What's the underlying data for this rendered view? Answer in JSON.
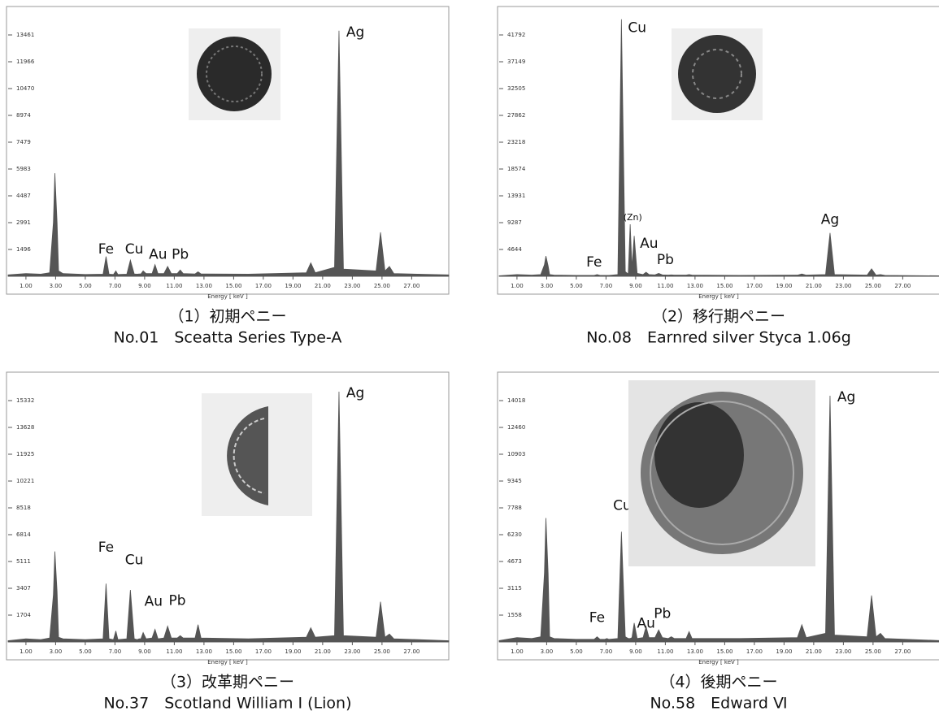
{
  "chart_data": [
    {
      "type": "area",
      "title": "（1）初期ペニー",
      "subtitle": "No.01　Sceatta Series Type-A",
      "xlabel": "Energy [ keV ]",
      "color": "#555555",
      "x": [
        -0.2,
        1.0,
        2.0,
        2.6,
        2.85,
        2.95,
        3.1,
        3.2,
        3.5,
        5.0,
        6.2,
        6.4,
        6.6,
        6.9,
        7.06,
        7.2,
        7.8,
        8.04,
        8.3,
        8.5,
        8.63,
        8.75,
        8.9,
        9.1,
        9.5,
        9.7,
        9.9,
        10.3,
        10.55,
        10.8,
        11.2,
        11.4,
        11.6,
        12.4,
        12.6,
        12.8,
        16.0,
        19.9,
        20.2,
        20.5,
        21.8,
        22.1,
        22.4,
        24.6,
        24.9,
        25.2,
        25.5,
        25.8,
        29.5
      ],
      "values": [
        80,
        150,
        120,
        200,
        3000,
        5750,
        3000,
        300,
        150,
        100,
        120,
        1100,
        120,
        100,
        300,
        100,
        120,
        900,
        130,
        120,
        130,
        130,
        300,
        150,
        150,
        650,
        150,
        150,
        550,
        150,
        150,
        350,
        150,
        130,
        250,
        130,
        120,
        200,
        750,
        200,
        500,
        13700,
        400,
        300,
        2450,
        300,
        550,
        150,
        80
      ],
      "xlim": [
        -0.2,
        29.5
      ],
      "ylim": [
        0,
        14957
      ],
      "xticks": [
        {
          "value": 1,
          "label": "1.00"
        },
        {
          "value": 3,
          "label": "3.00"
        },
        {
          "value": 5,
          "label": "5.00"
        },
        {
          "value": 7,
          "label": "7.00"
        },
        {
          "value": 9,
          "label": "9.00"
        },
        {
          "value": 11,
          "label": "11.00"
        },
        {
          "value": 13,
          "label": "13.00"
        },
        {
          "value": 15,
          "label": "15.00"
        },
        {
          "value": 17,
          "label": "17.00"
        },
        {
          "value": 19,
          "label": "19.00"
        },
        {
          "value": 21,
          "label": "21.00"
        },
        {
          "value": 23,
          "label": "23.00"
        },
        {
          "value": 25,
          "label": "25.00"
        },
        {
          "value": 27,
          "label": "27.00"
        }
      ],
      "yticks": [
        1496,
        2991,
        4487,
        5983,
        7479,
        8974,
        10470,
        11966,
        13461
      ],
      "annotations": [
        {
          "text": "Fe",
          "x": 6.4,
          "y": 1500
        },
        {
          "text": "Cu",
          "x": 8.3,
          "y": 1500
        },
        {
          "text": "Au",
          "x": 9.9,
          "y": 1200
        },
        {
          "text": "Pb",
          "x": 11.4,
          "y": 1200
        },
        {
          "text": "Ag",
          "x": 23.2,
          "y": 13600
        }
      ]
    },
    {
      "type": "area",
      "title": "（2）移行期ペニー",
      "subtitle": "No.08　Earnred silver Styca 1.06g",
      "xlabel": "Energy [ keV ]",
      "color": "#555555",
      "x": [
        -0.2,
        1.0,
        2.0,
        2.6,
        2.85,
        2.95,
        3.1,
        3.2,
        3.5,
        5.0,
        6.2,
        6.4,
        6.6,
        6.9,
        7.06,
        7.2,
        7.8,
        8.04,
        8.3,
        8.5,
        8.63,
        8.75,
        8.9,
        9.1,
        9.5,
        9.7,
        9.9,
        10.3,
        10.55,
        10.8,
        11.2,
        11.4,
        11.6,
        12.4,
        12.6,
        12.8,
        16.0,
        19.9,
        20.2,
        20.5,
        21.8,
        22.1,
        22.4,
        24.6,
        24.9,
        25.2,
        25.5,
        25.8,
        29.5
      ],
      "values": [
        80,
        300,
        200,
        300,
        2000,
        3500,
        1800,
        300,
        200,
        150,
        150,
        300,
        150,
        150,
        150,
        150,
        300,
        44500,
        800,
        400,
        9000,
        1500,
        7000,
        500,
        300,
        700,
        300,
        250,
        500,
        250,
        200,
        250,
        200,
        200,
        300,
        200,
        150,
        200,
        400,
        200,
        300,
        7500,
        300,
        200,
        1300,
        200,
        300,
        150,
        80
      ],
      "xlim": [
        -0.2,
        29.5
      ],
      "ylim": [
        0,
        46436
      ],
      "xticks": [
        {
          "value": 1,
          "label": "1.00"
        },
        {
          "value": 3,
          "label": "3.00"
        },
        {
          "value": 5,
          "label": "5.00"
        },
        {
          "value": 7,
          "label": "7.00"
        },
        {
          "value": 9,
          "label": "9.00"
        },
        {
          "value": 11,
          "label": "11.00"
        },
        {
          "value": 13,
          "label": "13.00"
        },
        {
          "value": 15,
          "label": "15.00"
        },
        {
          "value": 17,
          "label": "17.00"
        },
        {
          "value": 19,
          "label": "19.00"
        },
        {
          "value": 21,
          "label": "21.00"
        },
        {
          "value": 23,
          "label": "23.00"
        },
        {
          "value": 25,
          "label": "25.00"
        },
        {
          "value": 27,
          "label": "27.00"
        }
      ],
      "yticks": [
        4644,
        9287,
        13931,
        18574,
        23218,
        27862,
        32505,
        37149,
        41792
      ],
      "annotations": [
        {
          "text": "Cu",
          "x": 9.1,
          "y": 43000
        },
        {
          "text": "(Zn)",
          "x": 8.8,
          "y": 10100
        },
        {
          "text": "Au",
          "x": 9.9,
          "y": 5600
        },
        {
          "text": "Pb",
          "x": 11.0,
          "y": 2800
        },
        {
          "text": "Fe",
          "x": 6.2,
          "y": 2400
        },
        {
          "text": "Ag",
          "x": 22.1,
          "y": 9800
        }
      ]
    },
    {
      "type": "area",
      "title": "（3）改革期ペニー",
      "subtitle": "No.37　Scotland William Ⅰ (Lion)",
      "xlabel": "Energy [ keV ]",
      "color": "#555555",
      "x": [
        -0.2,
        1.0,
        2.0,
        2.6,
        2.85,
        2.95,
        3.1,
        3.2,
        3.5,
        5.0,
        6.2,
        6.4,
        6.6,
        6.9,
        7.06,
        7.2,
        7.8,
        8.04,
        8.3,
        8.5,
        8.63,
        8.75,
        8.9,
        9.1,
        9.5,
        9.7,
        9.9,
        10.3,
        10.55,
        10.8,
        11.2,
        11.4,
        11.6,
        12.4,
        12.6,
        12.8,
        16.0,
        19.9,
        20.2,
        20.5,
        21.8,
        22.1,
        22.4,
        24.6,
        24.9,
        25.2,
        25.5,
        25.8,
        29.5
      ],
      "values": [
        80,
        200,
        150,
        250,
        3000,
        5750,
        3200,
        300,
        200,
        150,
        200,
        3700,
        200,
        150,
        700,
        150,
        200,
        3300,
        200,
        150,
        200,
        200,
        600,
        200,
        250,
        800,
        200,
        250,
        1000,
        250,
        250,
        400,
        250,
        250,
        1100,
        250,
        200,
        300,
        900,
        300,
        400,
        15900,
        400,
        300,
        2550,
        300,
        500,
        200,
        80
      ],
      "xlim": [
        -0.2,
        29.5
      ],
      "ylim": [
        0,
        17036
      ],
      "xticks": [
        {
          "value": 1,
          "label": "1.00"
        },
        {
          "value": 3,
          "label": "3.00"
        },
        {
          "value": 5,
          "label": "5.00"
        },
        {
          "value": 7,
          "label": "7.00"
        },
        {
          "value": 9,
          "label": "9.00"
        },
        {
          "value": 11,
          "label": "11.00"
        },
        {
          "value": 13,
          "label": "13.00"
        },
        {
          "value": 15,
          "label": "15.00"
        },
        {
          "value": 17,
          "label": "17.00"
        },
        {
          "value": 19,
          "label": "19.00"
        },
        {
          "value": 21,
          "label": "21.00"
        },
        {
          "value": 23,
          "label": "23.00"
        },
        {
          "value": 25,
          "label": "25.00"
        },
        {
          "value": 27,
          "label": "27.00"
        }
      ],
      "yticks": [
        1704,
        3407,
        5111,
        6814,
        8518,
        10221,
        11925,
        13628,
        15332
      ],
      "annotations": [
        {
          "text": "Fe",
          "x": 6.4,
          "y": 6000
        },
        {
          "text": "Cu",
          "x": 8.3,
          "y": 5200
        },
        {
          "text": "Au",
          "x": 9.6,
          "y": 2550
        },
        {
          "text": "Pb",
          "x": 11.2,
          "y": 2600
        },
        {
          "text": "Ag",
          "x": 23.2,
          "y": 15800
        }
      ]
    },
    {
      "type": "area",
      "title": "（4）後期ペニー",
      "subtitle": "No.58　Edward Ⅵ",
      "xlabel": "Energy [ keV ]",
      "color": "#555555",
      "x": [
        -0.2,
        1.0,
        2.0,
        2.6,
        2.85,
        2.95,
        3.1,
        3.2,
        3.5,
        5.0,
        6.2,
        6.4,
        6.6,
        6.9,
        7.06,
        7.2,
        7.8,
        8.04,
        8.3,
        8.5,
        8.63,
        8.75,
        8.9,
        9.1,
        9.5,
        9.7,
        9.9,
        10.3,
        10.55,
        10.8,
        11.2,
        11.4,
        11.6,
        12.4,
        12.6,
        12.8,
        16.0,
        19.9,
        20.2,
        20.5,
        21.8,
        22.1,
        22.4,
        24.6,
        24.9,
        25.2,
        25.5,
        25.8,
        29.5
      ],
      "values": [
        80,
        250,
        200,
        300,
        4000,
        7200,
        4000,
        300,
        200,
        150,
        150,
        300,
        150,
        150,
        200,
        150,
        200,
        6400,
        300,
        200,
        200,
        250,
        1100,
        200,
        250,
        900,
        250,
        250,
        700,
        250,
        200,
        300,
        200,
        200,
        600,
        200,
        200,
        250,
        1000,
        250,
        500,
        14300,
        400,
        300,
        2700,
        300,
        500,
        200,
        80
      ],
      "xlim": [
        -0.2,
        29.5
      ],
      "ylim": [
        0,
        15576
      ],
      "xticks": [
        {
          "value": 1,
          "label": "1.00"
        },
        {
          "value": 3,
          "label": "3.00"
        },
        {
          "value": 5,
          "label": "5.00"
        },
        {
          "value": 7,
          "label": "7.00"
        },
        {
          "value": 9,
          "label": "9.00"
        },
        {
          "value": 11,
          "label": "11.00"
        },
        {
          "value": 13,
          "label": "13.00"
        },
        {
          "value": 15,
          "label": "15.00"
        },
        {
          "value": 17,
          "label": "17.00"
        },
        {
          "value": 19,
          "label": "19.00"
        },
        {
          "value": 21,
          "label": "21.00"
        },
        {
          "value": 23,
          "label": "23.00"
        },
        {
          "value": 25,
          "label": "25.00"
        },
        {
          "value": 27,
          "label": "27.00"
        }
      ],
      "yticks": [
        1558,
        3115,
        4673,
        6230,
        7788,
        9345,
        10903,
        12460,
        14018
      ],
      "annotations": [
        {
          "text": "Cu",
          "x": 8.1,
          "y": 7900
        },
        {
          "text": "Fe",
          "x": 6.4,
          "y": 1400
        },
        {
          "text": "Au",
          "x": 9.7,
          "y": 1070
        },
        {
          "text": "Pb",
          "x": 10.8,
          "y": 1630
        },
        {
          "text": "Ag",
          "x": 23.2,
          "y": 14200
        }
      ]
    }
  ]
}
